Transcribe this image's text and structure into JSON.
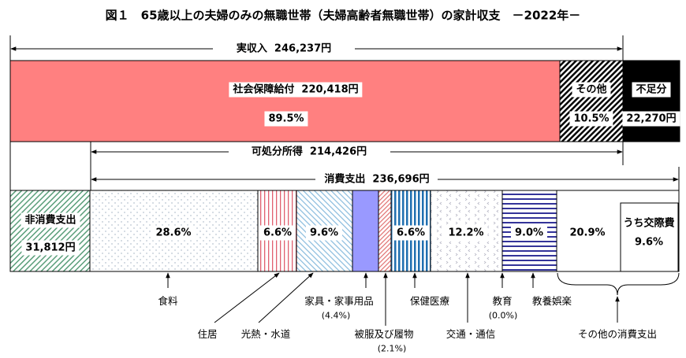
{
  "title": "図１　65歳以上の夫婦のみの無職世帯（夫婦高齢者無職世帯）の家計収支　－2022年－",
  "income": {
    "total_label": "実収入",
    "total_value": "246,237円",
    "social_security_label": "社会保障給付",
    "social_security_value": "220,418円",
    "social_security_pct": "89.5%",
    "other_label": "その他",
    "other_pct": "10.5%",
    "deficit_label": "不足分",
    "deficit_value": "22,270円"
  },
  "disposable": {
    "label": "可処分所得",
    "value": "214,426円"
  },
  "consumption": {
    "label": "消費支出",
    "value": "236,696円"
  },
  "non_consumption": {
    "label": "非消費支出",
    "value": "31,812円"
  },
  "categories": [
    {
      "name": "食料",
      "pct": "28.6%"
    },
    {
      "name": "住居",
      "pct": "6.6%"
    },
    {
      "name": "光熱・水道",
      "pct": "9.6%"
    },
    {
      "name": "家具・家事用品",
      "pct": "(4.4%)"
    },
    {
      "name": "被服及び履物",
      "pct": "(2.1%)"
    },
    {
      "name": "保健医療",
      "pct": "6.6%"
    },
    {
      "name": "交通・通信",
      "pct": "12.2%"
    },
    {
      "name": "教育",
      "pct": "(0.0%)"
    },
    {
      "name": "教養娯楽",
      "pct": "9.0%"
    },
    {
      "name": "その他の消費支出",
      "pct": "20.9%"
    }
  ],
  "social_expenses": {
    "label": "うち交際費",
    "pct": "9.6%"
  },
  "colors": {
    "social_security": "#ff8080",
    "deficit": "#000000",
    "furniture": "#9999ff",
    "health": "#1f6fb0",
    "recreation": "#333399",
    "non_consumption": "#5a9e7a"
  }
}
